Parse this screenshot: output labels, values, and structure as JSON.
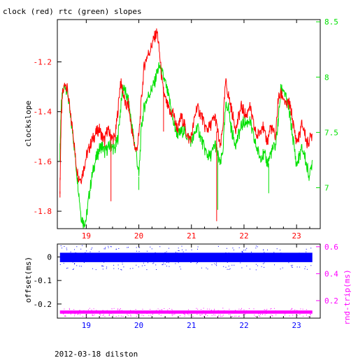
{
  "colors": {
    "clock": "#ff0000",
    "rtc": "#00e000",
    "offset": "#0000ff",
    "rndtrip": "#ff00ff",
    "axis": "#000000"
  },
  "chart_data": [
    {
      "type": "line",
      "title": "clock (red) rtc (green) slopes",
      "xlabel": "",
      "ylabel": "clockslope",
      "y2label": "",
      "xlim": [
        18.45,
        23.45
      ],
      "ylim": [
        -1.87,
        -1.03
      ],
      "y2lim": [
        6.63,
        8.52
      ],
      "x_ticks": [
        19,
        20,
        21,
        22,
        23
      ],
      "y_ticks": [
        -1.2,
        -1.4,
        -1.6,
        -1.8
      ],
      "y2_ticks": [
        8.5,
        8,
        7.5,
        7
      ],
      "grid": false,
      "series": [
        {
          "name": "clock (red)",
          "axis": "left",
          "color": "#ff0000",
          "x": [
            18.5,
            18.52,
            18.55,
            18.6,
            18.65,
            18.7,
            18.75,
            18.8,
            18.85,
            18.9,
            18.95,
            19.0,
            19.05,
            19.1,
            19.15,
            19.2,
            19.25,
            19.3,
            19.35,
            19.4,
            19.45,
            19.5,
            19.55,
            19.6,
            19.65,
            19.7,
            19.75,
            19.8,
            19.85,
            19.9,
            19.95,
            20.0,
            20.05,
            20.1,
            20.15,
            20.2,
            20.25,
            20.3,
            20.35,
            20.4,
            20.45,
            20.5,
            20.55,
            20.6,
            20.65,
            20.7,
            20.75,
            20.8,
            20.85,
            20.9,
            20.95,
            21.0,
            21.05,
            21.1,
            21.15,
            21.2,
            21.25,
            21.3,
            21.35,
            21.4,
            21.45,
            21.5,
            21.55,
            21.6,
            21.65,
            21.7,
            21.75,
            21.8,
            21.85,
            21.9,
            21.95,
            22.0,
            22.05,
            22.1,
            22.15,
            22.2,
            22.25,
            22.3,
            22.35,
            22.4,
            22.45,
            22.5,
            22.55,
            22.6,
            22.65,
            22.7,
            22.75,
            22.8,
            22.85,
            22.9,
            22.95,
            23.0,
            23.05,
            23.1,
            23.15,
            23.2,
            23.25,
            23.3
          ],
          "y": [
            -1.72,
            -1.45,
            -1.33,
            -1.28,
            -1.32,
            -1.42,
            -1.48,
            -1.6,
            -1.66,
            -1.67,
            -1.63,
            -1.58,
            -1.55,
            -1.52,
            -1.5,
            -1.48,
            -1.47,
            -1.5,
            -1.52,
            -1.47,
            -1.49,
            -1.51,
            -1.5,
            -1.4,
            -1.28,
            -1.32,
            -1.38,
            -1.37,
            -1.45,
            -1.52,
            -1.56,
            -1.5,
            -1.35,
            -1.22,
            -1.18,
            -1.16,
            -1.13,
            -1.1,
            -1.08,
            -1.18,
            -1.3,
            -1.35,
            -1.38,
            -1.41,
            -1.4,
            -1.45,
            -1.47,
            -1.42,
            -1.44,
            -1.48,
            -1.51,
            -1.5,
            -1.44,
            -1.38,
            -1.4,
            -1.42,
            -1.46,
            -1.47,
            -1.46,
            -1.44,
            -1.42,
            -1.48,
            -1.55,
            -1.45,
            -1.28,
            -1.33,
            -1.38,
            -1.43,
            -1.47,
            -1.42,
            -1.38,
            -1.4,
            -1.42,
            -1.37,
            -1.42,
            -1.47,
            -1.5,
            -1.48,
            -1.45,
            -1.5,
            -1.52,
            -1.46,
            -1.48,
            -1.5,
            -1.35,
            -1.33,
            -1.34,
            -1.38,
            -1.36,
            -1.4,
            -1.47,
            -1.52,
            -1.5,
            -1.45,
            -1.48,
            -1.53,
            -1.51,
            -1.49
          ]
        },
        {
          "name": "rtc (green)",
          "axis": "right",
          "color": "#00e000",
          "x": [
            18.5,
            18.52,
            18.55,
            18.6,
            18.65,
            18.7,
            18.75,
            18.8,
            18.85,
            18.9,
            18.95,
            19.0,
            19.05,
            19.1,
            19.15,
            19.2,
            19.25,
            19.3,
            19.35,
            19.4,
            19.45,
            19.5,
            19.55,
            19.6,
            19.65,
            19.7,
            19.75,
            19.8,
            19.85,
            19.9,
            19.95,
            20.0,
            20.05,
            20.1,
            20.15,
            20.2,
            20.25,
            20.3,
            20.35,
            20.4,
            20.45,
            20.5,
            20.55,
            20.6,
            20.65,
            20.7,
            20.75,
            20.8,
            20.85,
            20.9,
            20.95,
            21.0,
            21.05,
            21.1,
            21.15,
            21.2,
            21.25,
            21.3,
            21.35,
            21.4,
            21.45,
            21.5,
            21.55,
            21.6,
            21.65,
            21.7,
            21.75,
            21.8,
            21.85,
            21.9,
            21.95,
            22.0,
            22.05,
            22.1,
            22.15,
            22.2,
            22.25,
            22.3,
            22.35,
            22.4,
            22.45,
            22.5,
            22.55,
            22.6,
            22.65,
            22.7,
            22.75,
            22.8,
            22.85,
            22.9,
            22.95,
            23.0,
            23.05,
            23.1,
            23.15,
            23.2,
            23.25,
            23.3
          ],
          "y": [
            7.3,
            7.7,
            7.85,
            7.93,
            7.85,
            7.62,
            7.48,
            7.22,
            7.0,
            6.75,
            6.68,
            6.72,
            6.92,
            7.08,
            7.2,
            7.28,
            7.35,
            7.38,
            7.32,
            7.35,
            7.38,
            7.36,
            7.35,
            7.45,
            7.7,
            7.92,
            7.85,
            7.78,
            7.62,
            7.45,
            7.32,
            7.1,
            7.55,
            7.72,
            7.8,
            7.85,
            7.9,
            7.95,
            8.05,
            8.1,
            8.02,
            7.95,
            7.85,
            7.75,
            7.6,
            7.52,
            7.48,
            7.5,
            7.52,
            7.48,
            7.45,
            7.42,
            7.46,
            7.55,
            7.5,
            7.42,
            7.35,
            7.3,
            7.28,
            7.32,
            7.4,
            7.3,
            7.2,
            7.35,
            7.72,
            7.75,
            7.55,
            7.45,
            7.4,
            7.48,
            7.55,
            7.6,
            7.58,
            7.62,
            7.52,
            7.42,
            7.35,
            7.28,
            7.3,
            7.28,
            7.22,
            7.3,
            7.35,
            7.38,
            7.6,
            7.88,
            7.9,
            7.8,
            7.72,
            7.55,
            7.38,
            7.2,
            7.28,
            7.35,
            7.3,
            7.18,
            7.1,
            7.25
          ]
        }
      ],
      "spikes": [
        {
          "series": "clock (red)",
          "x": 18.5,
          "y": -1.73
        },
        {
          "series": "clock (red)",
          "x": 19.47,
          "y": -1.76
        },
        {
          "series": "clock (red)",
          "x": 20.47,
          "y": -1.48
        },
        {
          "series": "clock (red)",
          "x": 21.48,
          "y": -1.84
        },
        {
          "series": "rtc (green)",
          "x": 21.5,
          "y": 6.8
        },
        {
          "series": "rtc (green)",
          "x": 22.47,
          "y": 6.95
        },
        {
          "series": "rtc (green)",
          "x": 20.0,
          "y": 6.98
        }
      ]
    },
    {
      "type": "scatter",
      "title": "",
      "xlabel": "",
      "ylabel": "offset(ms)",
      "y2label": "rnd-trip(ms)",
      "xlim": [
        18.45,
        23.45
      ],
      "ylim": [
        -0.26,
        0.055
      ],
      "y2lim": [
        0.07,
        0.62
      ],
      "x_ticks": [
        19,
        20,
        21,
        22,
        23
      ],
      "y_ticks": [
        0,
        -0.1,
        -0.2
      ],
      "y2_ticks": [
        0.6,
        0.4,
        0.2
      ],
      "grid": false,
      "series": [
        {
          "name": "offset",
          "axis": "left",
          "color": "#0000ff",
          "x_range": [
            18.5,
            23.3
          ],
          "center": -0.002,
          "spread": 0.02
        },
        {
          "name": "rnd-trip",
          "axis": "right",
          "color": "#ff00ff",
          "x_range": [
            18.5,
            23.3
          ],
          "center": 0.115,
          "spread": 0.012
        }
      ]
    }
  ],
  "footer": "2012-03-18 dilston"
}
